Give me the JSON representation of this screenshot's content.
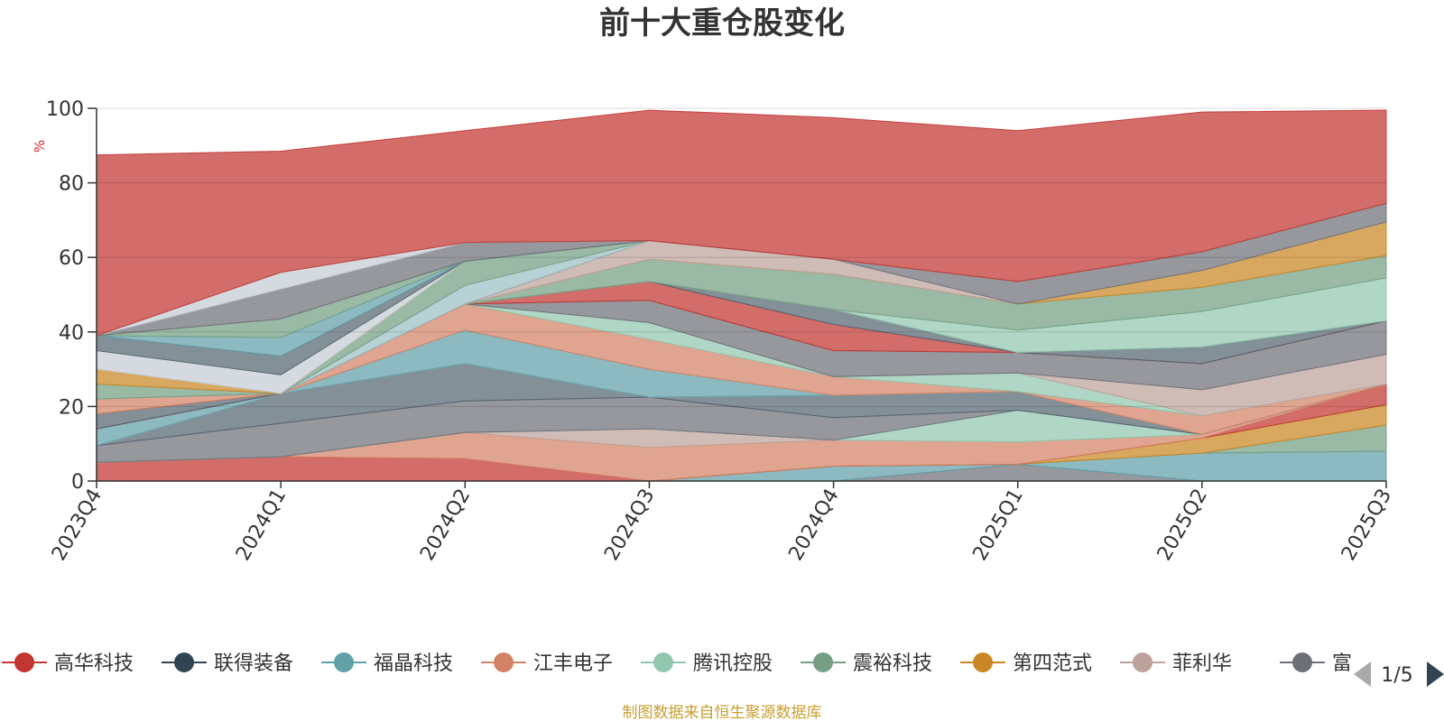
{
  "chart_data": {
    "type": "area",
    "stacked": true,
    "title": "前十大重仓股变化",
    "ylabel": "%",
    "ylim": [
      0,
      100
    ],
    "yticks": [
      0,
      20,
      40,
      60,
      80,
      100
    ],
    "categories": [
      "2023Q4",
      "2024Q1",
      "2024Q2",
      "2024Q3",
      "2024Q4",
      "2025Q1",
      "2025Q2",
      "2025Q3"
    ],
    "legend_position": "bottom",
    "legend_page": "1/5",
    "footer": "制图数据来自恒生聚源数据库",
    "series": [
      {
        "name": "s01",
        "color": "#6e7079",
        "values": [
          0,
          0,
          0,
          0,
          0,
          4.5,
          0,
          0
        ]
      },
      {
        "name": "s02",
        "color": "#61a0a8",
        "values": [
          0,
          0,
          0,
          0,
          4,
          0,
          7.5,
          8
        ]
      },
      {
        "name": "s03",
        "color": "#749f83",
        "values": [
          0,
          0,
          0,
          0,
          0,
          0,
          0,
          7
        ]
      },
      {
        "name": "s04",
        "color": "#ca8622",
        "values": [
          0,
          0,
          0,
          0,
          0,
          0,
          4,
          5.5
        ]
      },
      {
        "name": "s05",
        "color": "#c23531",
        "values": [
          5,
          6.5,
          6,
          0,
          0,
          0,
          0,
          5.5
        ]
      },
      {
        "name": "s06",
        "color": "#d48265",
        "values": [
          0,
          0,
          7,
          9,
          7,
          6,
          1,
          0
        ]
      },
      {
        "name": "s07",
        "color": "#bda29a",
        "values": [
          0,
          0,
          0,
          5,
          0,
          0,
          0,
          0
        ]
      },
      {
        "name": "s08",
        "color": "#91c7ae",
        "values": [
          0,
          0,
          0,
          0,
          0,
          8.5,
          0,
          0
        ]
      },
      {
        "name": "s09",
        "color": "#6e7079",
        "values": [
          4.5,
          9,
          8.5,
          8.5,
          6,
          0,
          0,
          0
        ]
      },
      {
        "name": "s10",
        "color": "#546570",
        "values": [
          0,
          8,
          10,
          0,
          6,
          5,
          0,
          0
        ]
      },
      {
        "name": "s11",
        "color": "#c4ccd3",
        "values": [
          0,
          0,
          0,
          0,
          0,
          0,
          0,
          0
        ]
      },
      {
        "name": "s12",
        "color": "#61a0a8",
        "values": [
          4.5,
          0,
          9,
          7.5,
          0,
          0,
          0,
          0
        ]
      },
      {
        "name": "s13",
        "color": "#d48265",
        "values": [
          0,
          0,
          7,
          8,
          5,
          0,
          5,
          0
        ]
      },
      {
        "name": "s14",
        "color": "#91c7ae",
        "values": [
          0,
          0,
          0,
          4.5,
          0,
          5,
          0,
          0
        ]
      },
      {
        "name": "s15",
        "color": "#bda29a",
        "values": [
          0,
          0,
          0,
          0,
          0,
          0,
          7,
          8
        ]
      },
      {
        "name": "s16",
        "color": "#6e7079",
        "values": [
          0,
          0,
          0,
          6,
          7,
          5.5,
          7,
          9
        ]
      },
      {
        "name": "s17",
        "color": "#c23531",
        "values": [
          0,
          0,
          0,
          5,
          7,
          0,
          0,
          0
        ]
      },
      {
        "name": "s18",
        "color": "#546570",
        "values": [
          4,
          0,
          0,
          0,
          4,
          0,
          4.5,
          0
        ]
      },
      {
        "name": "s19",
        "color": "#91c7ae",
        "values": [
          0,
          0,
          0,
          0,
          0,
          6,
          9.5,
          11.5
        ]
      },
      {
        "name": "s20",
        "color": "#749f83",
        "values": [
          0,
          0,
          0,
          6,
          9.5,
          7,
          6.5,
          6
        ]
      },
      {
        "name": "s21",
        "color": "#ca8622",
        "values": [
          0,
          0,
          0,
          0,
          0,
          0,
          4.5,
          9
        ]
      },
      {
        "name": "s22",
        "color": "#bda29a",
        "values": [
          0,
          0,
          0,
          5,
          4,
          0,
          0,
          0
        ]
      },
      {
        "name": "s23",
        "color": "#6e7079",
        "values": [
          0,
          0,
          0,
          0,
          0,
          6,
          5,
          5
        ]
      },
      {
        "name": "s24",
        "color": "#546570",
        "values": [
          0,
          0,
          0,
          0,
          0,
          0,
          0,
          0
        ]
      },
      {
        "name": "s25",
        "color": "#d48265",
        "values": [
          4,
          0,
          0,
          0,
          0,
          0,
          0,
          0
        ]
      },
      {
        "name": "s26",
        "color": "#9bbfc4",
        "values": [
          0,
          0,
          5,
          0,
          0,
          0,
          0,
          0
        ]
      },
      {
        "name": "s27",
        "color": "#749f83",
        "values": [
          4,
          0,
          6.5,
          0,
          0,
          0,
          0,
          0
        ]
      },
      {
        "name": "s28",
        "color": "#ca8622",
        "values": [
          4,
          0,
          0,
          0,
          0,
          0,
          0,
          0
        ]
      },
      {
        "name": "s29",
        "color": "#c4ccd3",
        "values": [
          5,
          5,
          0,
          0,
          0,
          0,
          0,
          0
        ]
      },
      {
        "name": "s30",
        "color": "#546570",
        "values": [
          4,
          5,
          0,
          0,
          0,
          0,
          0,
          0
        ]
      },
      {
        "name": "s31",
        "color": "#61a0a8",
        "values": [
          0,
          5,
          0,
          0,
          0,
          0,
          0,
          0
        ]
      },
      {
        "name": "s32",
        "color": "#749f83",
        "values": [
          0,
          5,
          0,
          0,
          0,
          0,
          0,
          0
        ]
      },
      {
        "name": "s33",
        "color": "#6e7079",
        "values": [
          0,
          8,
          5,
          0,
          0,
          0,
          0,
          0
        ]
      },
      {
        "name": "s34",
        "color": "#c4ccd3",
        "values": [
          0,
          4.5,
          0,
          0,
          0,
          0,
          0,
          0
        ]
      },
      {
        "name": "s35",
        "color": "#c23531",
        "values": [
          48.5,
          32.5,
          30,
          35,
          38,
          40.5,
          37.5,
          25
        ]
      }
    ],
    "legend": [
      {
        "name": "高华科技",
        "color": "#c23531"
      },
      {
        "name": "联得装备",
        "color": "#2f4554"
      },
      {
        "name": "福晶科技",
        "color": "#61a0a8"
      },
      {
        "name": "江丰电子",
        "color": "#d48265"
      },
      {
        "name": "腾讯控股",
        "color": "#91c7ae"
      },
      {
        "name": "震裕科技",
        "color": "#749f83"
      },
      {
        "name": "第四范式",
        "color": "#ca8622"
      },
      {
        "name": "菲利华",
        "color": "#bda29a"
      },
      {
        "name": "富",
        "color": "#6e7079"
      }
    ]
  }
}
